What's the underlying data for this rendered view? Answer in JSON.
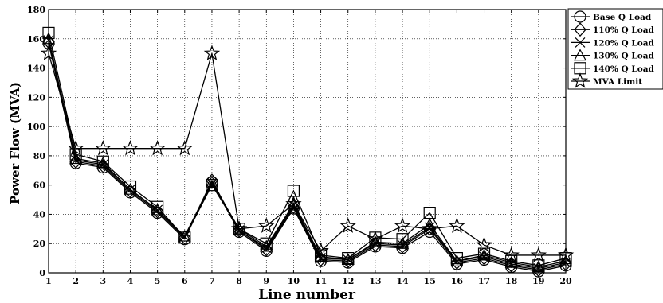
{
  "chart_data": {
    "type": "line",
    "title": "",
    "xlabel": "Line number",
    "ylabel": "Power Flow (MVA)",
    "xlim": [
      1,
      20
    ],
    "ylim": [
      0,
      180
    ],
    "xticks": [
      1,
      2,
      3,
      4,
      5,
      6,
      7,
      8,
      9,
      10,
      11,
      12,
      13,
      14,
      15,
      16,
      17,
      18,
      19,
      20
    ],
    "yticks": [
      0,
      20,
      40,
      60,
      80,
      100,
      120,
      140,
      160,
      180
    ],
    "grid": true,
    "legend_position": "outside-right",
    "x": [
      1,
      2,
      3,
      4,
      5,
      6,
      7,
      8,
      9,
      10,
      11,
      12,
      13,
      14,
      15,
      16,
      17,
      18,
      19,
      20
    ],
    "series": [
      {
        "name": "Base Q Load",
        "marker": "circle",
        "values": [
          157,
          75,
          72,
          55,
          41,
          23,
          62,
          28,
          15,
          44,
          8,
          7,
          18,
          17,
          28,
          6,
          9,
          4,
          1,
          5
        ]
      },
      {
        "name": "110% Q Load",
        "marker": "diamond",
        "values": [
          158,
          76,
          73,
          56,
          42,
          24,
          63,
          29,
          16,
          45,
          9,
          8,
          19,
          18,
          30,
          7,
          10,
          5,
          2,
          6
        ]
      },
      {
        "name": "120% Q Load",
        "marker": "x",
        "values": [
          159,
          77,
          74,
          57,
          43,
          25,
          61,
          29,
          17,
          46,
          10,
          9,
          20,
          19,
          31,
          8,
          11,
          6,
          3,
          7
        ]
      },
      {
        "name": "130% Q Load",
        "marker": "triangle",
        "values": [
          160,
          78,
          75,
          57,
          43,
          25,
          62,
          30,
          18,
          47,
          11,
          9,
          21,
          20,
          33,
          8,
          12,
          7,
          4,
          8
        ]
      },
      {
        "name": "140% Q Load",
        "marker": "square",
        "values": [
          164,
          81,
          76,
          59,
          45,
          24,
          60,
          30,
          20,
          56,
          12,
          10,
          24,
          23,
          41,
          10,
          13,
          8,
          5,
          10
        ]
      },
      {
        "name": "MVA Limit",
        "marker": "star",
        "values": [
          150,
          85,
          85,
          85,
          85,
          85,
          150,
          30,
          32,
          47,
          15,
          32,
          23,
          32,
          30,
          32,
          19,
          12,
          12,
          12
        ]
      }
    ]
  }
}
